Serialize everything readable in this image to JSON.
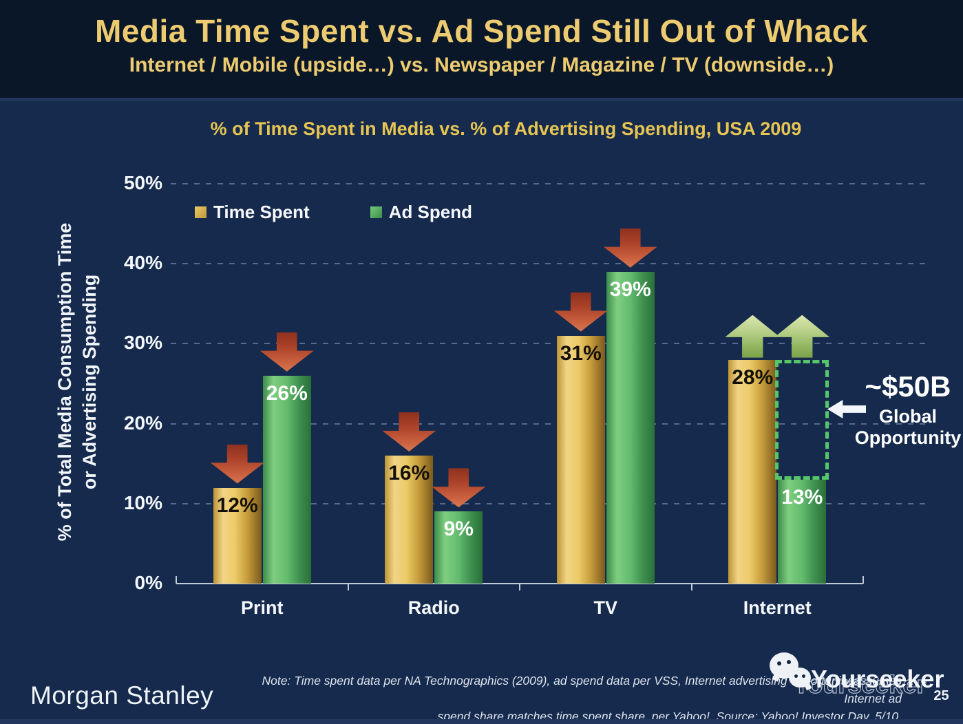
{
  "slide": {
    "title": "Media Time Spent vs. Ad Spend Still Out of Whack",
    "subtitle": "Internet / Mobile (upside…) vs. Newspaper / Magazine / TV (downside…)",
    "page_number": "25"
  },
  "chart_data": {
    "type": "bar",
    "title": "% of Time Spent in Media vs. % of Advertising Spending, USA 2009",
    "categories": [
      "Print",
      "Radio",
      "TV",
      "Internet"
    ],
    "series": [
      {
        "name": "Time Spent",
        "values": [
          12,
          16,
          31,
          28
        ],
        "color": "#e6c05a",
        "label_color": "#141007"
      },
      {
        "name": "Ad Spend",
        "values": [
          26,
          9,
          39,
          13
        ],
        "color": "#5cb468",
        "label_color": "#ffffff"
      }
    ],
    "value_suffix": "%",
    "ylabel_line1": "% of Total Media Consumption Time",
    "ylabel_line2": "or Advertising Spending",
    "yticks": [
      0,
      10,
      20,
      30,
      40,
      50
    ],
    "ytick_suffix": "%",
    "ylim": [
      0,
      50
    ],
    "grid": "dashed-horizontal",
    "legend_position": "top-left",
    "trend_arrows": [
      [
        "down",
        "down"
      ],
      [
        "down",
        "down"
      ],
      [
        "down",
        "down"
      ],
      [
        "up",
        "up"
      ]
    ],
    "annotation": {
      "value": "~$50B",
      "label_line1": "Global",
      "label_line2": "Opportunity"
    },
    "colors": {
      "down_arrow": "#c05a38",
      "up_arrow": "#a8c87c",
      "gap_box_border": "#55c66a",
      "background_navy": "#152a4d",
      "title_gold": "#edcb70"
    }
  },
  "footer": {
    "brand": "Morgan Stanley",
    "note_line1": "Note: Time spent data per NA Technographics (2009), ad spend data per VSS, Internet advertising opportunity assumes Internet ad",
    "note_line2": "spend share matches time spent share, per Yahoo!. Source: Yahoo! Investor Day, 5/10.",
    "watermark": "Yourseeker"
  }
}
